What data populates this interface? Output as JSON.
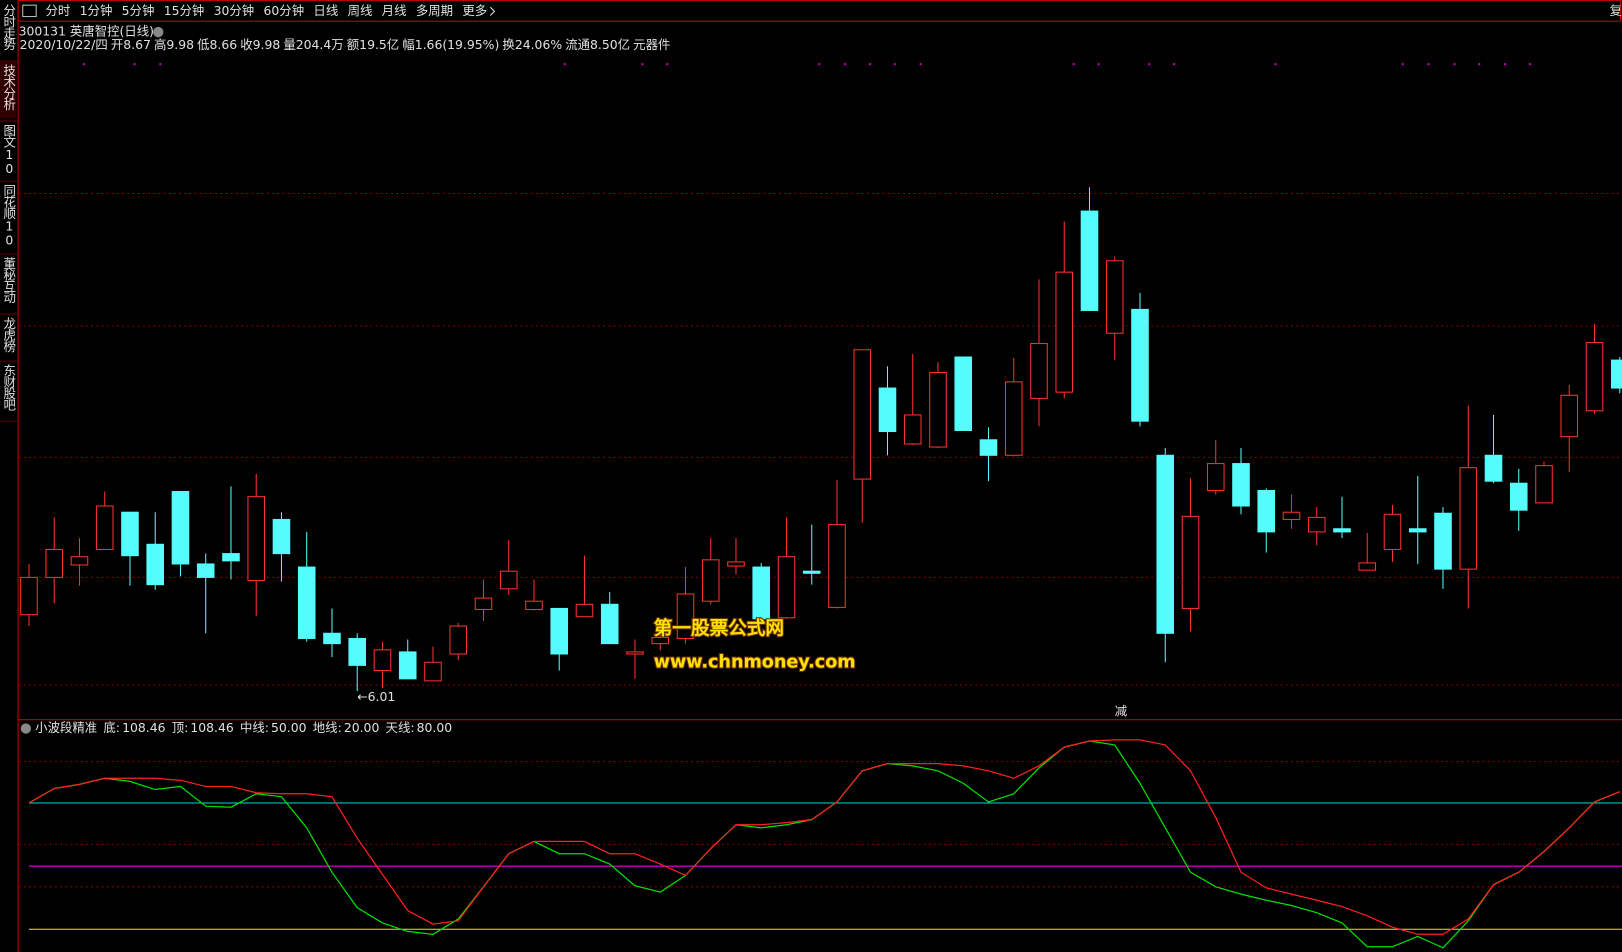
{
  "toolbar": {
    "tabs": [
      "分时",
      "1分钟",
      "5分钟",
      "15分钟",
      "30分钟",
      "60分钟",
      "日线",
      "周线",
      "月线",
      "多周期",
      "更多"
    ],
    "active": 6,
    "right": "复"
  },
  "sidebar": {
    "tabs": [
      "分时走势",
      "技术分析",
      "图文10",
      "同花顺10",
      "董秘互动",
      "龙虎榜",
      "东财股吧"
    ],
    "active": 1
  },
  "quote": {
    "title": "300131 英唐智控(日线)",
    "date": "2020/10/22/四",
    "open": "开8.67",
    "high": "高9.98",
    "low": "低8.66",
    "close": "收9.98",
    "volume": "量204.4万",
    "amount": "额19.5亿",
    "change": "幅1.66(19.95%)",
    "turnover": "换24.06%",
    "float": "流通8.50亿",
    "sector": "元器件"
  },
  "kline": {
    "ylim": [
      5.85,
      18.17
    ],
    "up_color": "#ff3030",
    "down_color": "#54fcfc",
    "candles": [
      [
        7.49,
        8.47,
        7.27,
        8.21
      ],
      [
        8.21,
        9.37,
        7.71,
        8.75
      ],
      [
        8.45,
        8.97,
        8.05,
        8.61
      ],
      [
        8.75,
        9.87,
        8.75,
        9.59
      ],
      [
        9.47,
        9.47,
        8.05,
        8.63
      ],
      [
        8.85,
        9.47,
        7.97,
        8.07
      ],
      [
        9.87,
        9.87,
        8.23,
        8.47
      ],
      [
        8.47,
        8.67,
        7.13,
        8.21
      ],
      [
        8.67,
        9.97,
        8.17,
        8.53
      ],
      [
        8.15,
        10.21,
        7.47,
        9.77
      ],
      [
        9.33,
        9.47,
        8.13,
        8.67
      ],
      [
        8.41,
        9.09,
        6.97,
        7.03
      ],
      [
        7.13,
        7.61,
        6.67,
        6.93
      ],
      [
        7.03,
        7.13,
        6.01,
        6.51
      ],
      [
        6.41,
        6.97,
        6.07,
        6.81
      ],
      [
        6.77,
        7.01,
        6.25,
        6.25
      ],
      [
        6.21,
        6.87,
        6.21,
        6.57
      ],
      [
        6.73,
        7.33,
        6.61,
        7.27
      ],
      [
        7.59,
        8.17,
        7.37,
        7.81
      ],
      [
        7.99,
        8.93,
        7.87,
        8.33
      ],
      [
        7.59,
        8.17,
        7.57,
        7.75
      ],
      [
        7.61,
        7.61,
        6.41,
        6.73
      ],
      [
        7.45,
        8.63,
        7.45,
        7.69
      ],
      [
        7.69,
        7.93,
        6.93,
        6.93
      ],
      [
        6.73,
        7.01,
        6.25,
        6.77
      ],
      [
        6.93,
        7.2,
        6.8,
        7.05
      ],
      [
        7.03,
        8.41,
        6.93,
        7.89
      ],
      [
        7.75,
        8.97,
        7.69,
        8.55
      ],
      [
        8.43,
        8.97,
        8.27,
        8.51
      ],
      [
        8.41,
        8.49,
        7.41,
        7.41
      ],
      [
        7.43,
        9.37,
        7.41,
        8.61
      ],
      [
        8.33,
        9.23,
        8.07,
        8.29
      ],
      [
        7.63,
        10.09,
        7.61,
        9.23
      ],
      [
        10.11,
        12.61,
        9.27,
        12.61
      ],
      [
        11.87,
        12.29,
        10.57,
        11.03
      ],
      [
        10.79,
        12.53,
        10.77,
        11.35
      ],
      [
        10.73,
        12.37,
        10.71,
        12.17
      ],
      [
        12.47,
        12.47,
        11.05,
        11.05
      ],
      [
        10.87,
        11.11,
        10.07,
        10.57
      ],
      [
        10.57,
        12.45,
        10.55,
        11.99
      ],
      [
        11.67,
        13.97,
        11.13,
        12.73
      ],
      [
        11.79,
        15.09,
        11.67,
        14.11
      ],
      [
        15.29,
        15.75,
        13.37,
        13.37
      ],
      [
        12.93,
        14.41,
        12.41,
        14.33
      ],
      [
        13.39,
        13.71,
        11.13,
        11.23
      ],
      [
        10.57,
        10.71,
        6.57,
        7.13
      ],
      [
        7.61,
        10.13,
        7.17,
        9.39
      ],
      [
        9.89,
        10.87,
        9.81,
        10.41
      ],
      [
        10.41,
        10.71,
        9.43,
        9.59
      ],
      [
        9.89,
        9.93,
        8.69,
        9.09
      ],
      [
        9.33,
        9.81,
        9.15,
        9.47
      ],
      [
        9.09,
        9.57,
        8.83,
        9.37
      ],
      [
        9.15,
        9.77,
        8.97,
        9.09
      ],
      [
        8.35,
        9.07,
        8.35,
        8.49
      ],
      [
        8.75,
        9.61,
        8.51,
        9.43
      ],
      [
        9.15,
        10.17,
        8.47,
        9.09
      ],
      [
        9.45,
        9.57,
        7.99,
        8.37
      ],
      [
        8.37,
        11.53,
        7.61,
        10.33
      ],
      [
        10.57,
        11.35,
        10.03,
        10.07
      ],
      [
        10.03,
        10.31,
        9.11,
        9.51
      ],
      [
        9.65,
        10.45,
        9.65,
        10.37
      ],
      [
        10.93,
        11.93,
        10.25,
        11.73
      ],
      [
        11.43,
        13.11,
        11.37,
        12.75
      ],
      [
        12.41,
        12.47,
        11.77,
        11.87
      ]
    ],
    "annotations": [
      {
        "text": "←6.01",
        "at": 13,
        "value": 6.01
      },
      {
        "text": "减",
        "at": 43
      }
    ]
  },
  "indicator": {
    "name": "小波段精准",
    "ylim": [
      9.2,
      111.5
    ],
    "series": [
      {
        "name": "底:",
        "color": "#00e000",
        "current": 108.46,
        "values": [
          80.0,
          86.9,
          88.9,
          91.8,
          90.3,
          86.4,
          87.9,
          78.5,
          78.0,
          84.4,
          83.0,
          68.2,
          47.1,
          30.3,
          23.0,
          19.0,
          17.6,
          24.9,
          40.2,
          55.9,
          61.8,
          55.9,
          55.9,
          51.0,
          40.7,
          37.7,
          45.6,
          58.4,
          69.7,
          68.2,
          69.7,
          72.1,
          80.5,
          95.3,
          98.7,
          97.7,
          95.3,
          89.4,
          80.5,
          84.4,
          96.7,
          106.6,
          109.5,
          107.6,
          89.4,
          68.2,
          47.1,
          40.2,
          36.7,
          33.8,
          31.3,
          27.9,
          23.0,
          11.7,
          11.7,
          16.6,
          11.2,
          24.0,
          41.2,
          47.1,
          56.9,
          68.2,
          80.5,
          85.4
        ]
      },
      {
        "name": "顶:",
        "color": "#ff2020",
        "current": 108.46,
        "values": [
          80.0,
          86.9,
          88.9,
          91.8,
          91.8,
          91.8,
          90.8,
          87.9,
          87.9,
          84.9,
          84.4,
          84.4,
          83.0,
          63.3,
          46.1,
          28.9,
          22.5,
          24.0,
          40.2,
          55.9,
          61.8,
          61.8,
          61.8,
          55.9,
          55.9,
          51.0,
          45.6,
          58.4,
          69.7,
          69.7,
          70.7,
          72.1,
          80.5,
          95.3,
          98.7,
          98.7,
          98.7,
          97.7,
          95.3,
          91.8,
          97.7,
          106.6,
          109.5,
          110.0,
          110.0,
          107.6,
          95.3,
          73.1,
          47.1,
          39.7,
          36.7,
          33.8,
          30.8,
          26.4,
          21.0,
          17.6,
          17.6,
          24.9,
          41.2,
          47.1,
          56.9,
          68.2,
          80.5,
          85.4
        ]
      }
    ],
    "levels": [
      {
        "name": "中线:",
        "color": "#ff00ff",
        "value": {
          "value": 50,
          "label": "50.00"
        }
      },
      {
        "name": "地线:",
        "color": "#e8e800",
        "value": {
          "value": 20,
          "label": "20.00"
        }
      },
      {
        "name": "天线:",
        "color": "#00d8d8",
        "value": {
          "value": 80,
          "label": "80.00"
        }
      }
    ]
  },
  "watermark": {
    "line1": "第一股票公式网",
    "line2": "www.chnmoney.com"
  }
}
